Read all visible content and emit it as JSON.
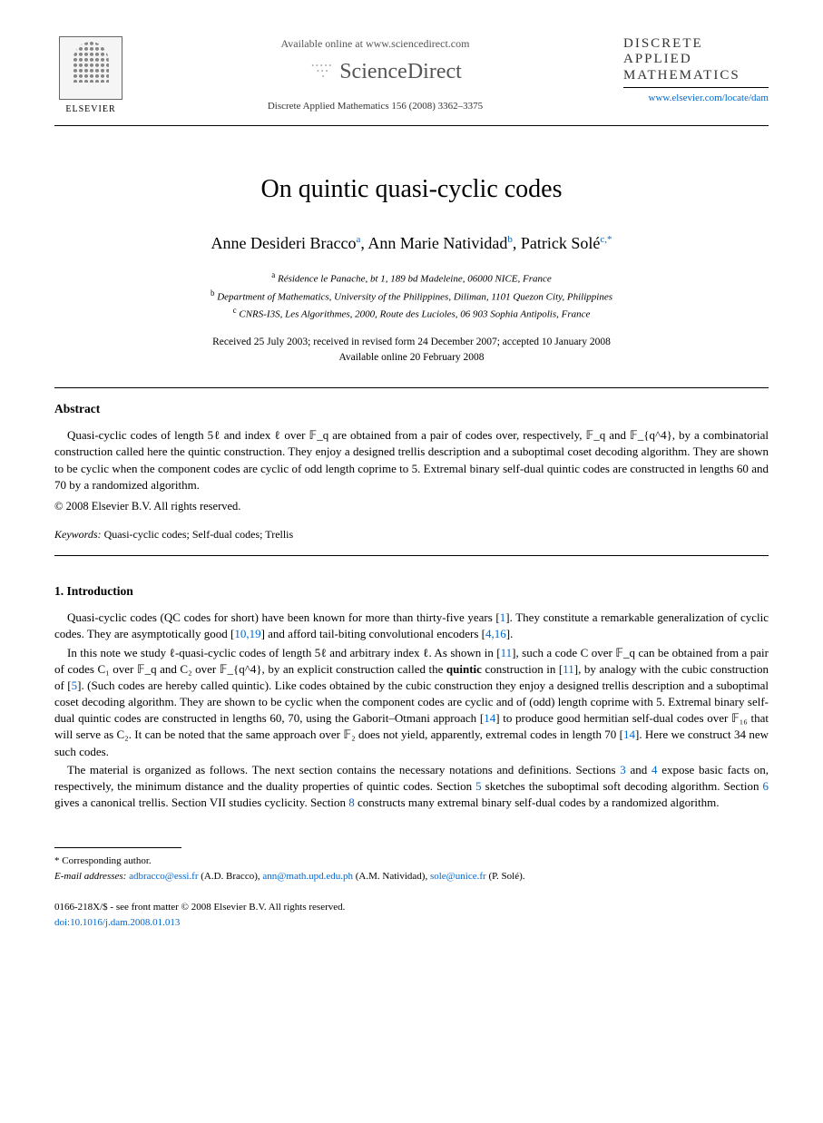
{
  "header": {
    "elsevier_label": "ELSEVIER",
    "available_online": "Available online at www.sciencedirect.com",
    "sciencedirect": "ScienceDirect",
    "journal_ref": "Discrete Applied Mathematics 156 (2008) 3362–3375",
    "journal_name_line1": "DISCRETE",
    "journal_name_line2": "APPLIED",
    "journal_name_line3": "MATHEMATICS",
    "journal_url": "www.elsevier.com/locate/dam"
  },
  "article": {
    "title": "On quintic quasi-cyclic codes",
    "authors_html": "Anne Desideri Bracco<sup>a</sup>, Ann Marie Natividad<sup>b</sup>, Patrick Solé<sup>c,*</sup>",
    "affiliations": {
      "a": "Résidence le Panache, bt 1, 189 bd Madeleine, 06000 NICE, France",
      "b": "Department of Mathematics, University of the Philippines, Diliman, 1101 Quezon City, Philippines",
      "c": "CNRS-I3S, Les Algorithmes, 2000, Route des Lucioles, 06 903 Sophia Antipolis, France"
    },
    "dates_line1": "Received 25 July 2003; received in revised form 24 December 2007; accepted 10 January 2008",
    "dates_line2": "Available online 20 February 2008"
  },
  "abstract": {
    "heading": "Abstract",
    "text": "Quasi-cyclic codes of length 5ℓ and index ℓ over 𝔽_q are obtained from a pair of codes over, respectively, 𝔽_q and 𝔽_{q^4}, by a combinatorial construction called here the quintic construction. They enjoy a designed trellis description and a suboptimal coset decoding algorithm. They are shown to be cyclic when the component codes are cyclic of odd length coprime to 5. Extremal binary self-dual quintic codes are constructed in lengths 60 and 70 by a randomized algorithm.",
    "copyright": "© 2008 Elsevier B.V. All rights reserved.",
    "keywords_label": "Keywords:",
    "keywords": "Quasi-cyclic codes; Self-dual codes; Trellis"
  },
  "introduction": {
    "heading": "1.  Introduction",
    "para1_pre": "Quasi-cyclic codes (QC codes for short) have been known for more than thirty-five years [",
    "para1_ref1": "1",
    "para1_mid1": "]. They constitute a remarkable generalization of cyclic codes. They are asymptotically good [",
    "para1_ref2": "10,19",
    "para1_mid2": "] and afford tail-biting convolutional encoders [",
    "para1_ref3": "4,16",
    "para1_end": "].",
    "para2_pre": "In this note we study ℓ-quasi-cyclic codes of length 5ℓ and arbitrary index ℓ. As shown in [",
    "para2_ref1": "11",
    "para2_mid1": "], such a code C over 𝔽_q can be obtained from a pair of codes C₁ over 𝔽_q and C₂ over 𝔽_{q^4}, by an explicit construction called the ",
    "para2_bold": "quintic",
    "para2_mid2": " construction in [",
    "para2_ref2": "11",
    "para2_mid3": "], by analogy with the cubic construction of [",
    "para2_ref3": "5",
    "para2_mid4": "]. (Such codes are hereby called quintic). Like codes obtained by the cubic construction they enjoy a designed trellis description and a suboptimal coset decoding algorithm. They are shown to be cyclic when the component codes are cyclic and of (odd) length coprime with 5. Extremal binary self-dual quintic codes are constructed in lengths 60, 70, using the Gaborit–Otmani approach [",
    "para2_ref4": "14",
    "para2_mid5": "] to produce good hermitian self-dual codes over 𝔽₁₆ that will serve as C₂. It can be noted that the same approach over 𝔽₂ does not yield, apparently, extremal codes in length 70 [",
    "para2_ref5": "14",
    "para2_end": "]. Here we construct 34 new such codes.",
    "para3_pre": "The material is organized as follows. The next section contains the necessary notations and definitions. Sections ",
    "para3_ref1": "3",
    "para3_mid1": " and ",
    "para3_ref2": "4",
    "para3_mid2": " expose basic facts on, respectively, the minimum distance and the duality properties of quintic codes. Section ",
    "para3_ref3": "5",
    "para3_mid3": " sketches the suboptimal soft decoding algorithm. Section ",
    "para3_ref4": "6",
    "para3_mid4": " gives a canonical trellis. Section VII studies cyclicity. Section ",
    "para3_ref5": "8",
    "para3_end": " constructs many extremal binary self-dual codes by a randomized algorithm."
  },
  "footnote": {
    "corresponding": "* Corresponding author.",
    "email_label": "E-mail addresses:",
    "email1": "adbracco@essi.fr",
    "email1_name": " (A.D. Bracco), ",
    "email2": "ann@math.upd.edu.ph",
    "email2_name": " (A.M. Natividad), ",
    "email3": "sole@unice.fr",
    "email3_name": " (P. Solé)."
  },
  "page_footer": {
    "issn": "0166-218X/$ - see front matter © 2008 Elsevier B.V. All rights reserved.",
    "doi_label": "doi:",
    "doi": "10.1016/j.dam.2008.01.013"
  },
  "colors": {
    "link": "#0066cc",
    "text": "#000000",
    "gray": "#555555"
  }
}
